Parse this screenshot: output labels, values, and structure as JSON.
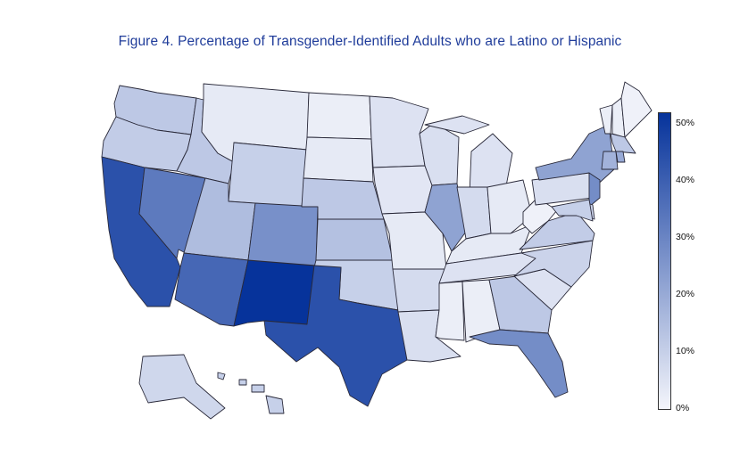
{
  "title": "Figure 4. Percentage of Transgender-Identified Adults who are Latino or Hispanic",
  "colorbar": {
    "ticks": [
      "0%",
      "10%",
      "20%",
      "30%",
      "40%",
      "50%"
    ],
    "color_low": "#f4f5fb",
    "color_high": "#06339b"
  },
  "chart_data": {
    "type": "choropleth",
    "title": "Figure 4. Percentage of Transgender-Identified Adults who are Latino or Hispanic",
    "value_unit": "%",
    "range": [
      0,
      52
    ],
    "values": {
      "WA": 12,
      "OR": 11,
      "CA": 44,
      "NV": 33,
      "ID": 12,
      "MT": 3,
      "WY": 10,
      "UT": 15,
      "AZ": 38,
      "NM": 52,
      "CO": 27,
      "ND": 2,
      "SD": 3,
      "NE": 12,
      "KS": 14,
      "OK": 10,
      "TX": 44,
      "MN": 5,
      "IA": 4,
      "MO": 3,
      "AR": 7,
      "LA": 6,
      "WI": 6,
      "IL": 22,
      "MI": 5,
      "IN": 7,
      "OH": 3,
      "KY": 3,
      "TN": 5,
      "MS": 2,
      "AL": 2,
      "GA": 12,
      "FL": 28,
      "SC": 5,
      "NC": 9,
      "VA": 11,
      "WV": 1,
      "PA": 6,
      "NY": 22,
      "VT": 2,
      "NH": 2,
      "ME": 1,
      "MA": 12,
      "CT": 18,
      "RI": 20,
      "NJ": 28,
      "DE": 9,
      "MD": 10,
      "AK": 8,
      "HI": 10
    }
  }
}
